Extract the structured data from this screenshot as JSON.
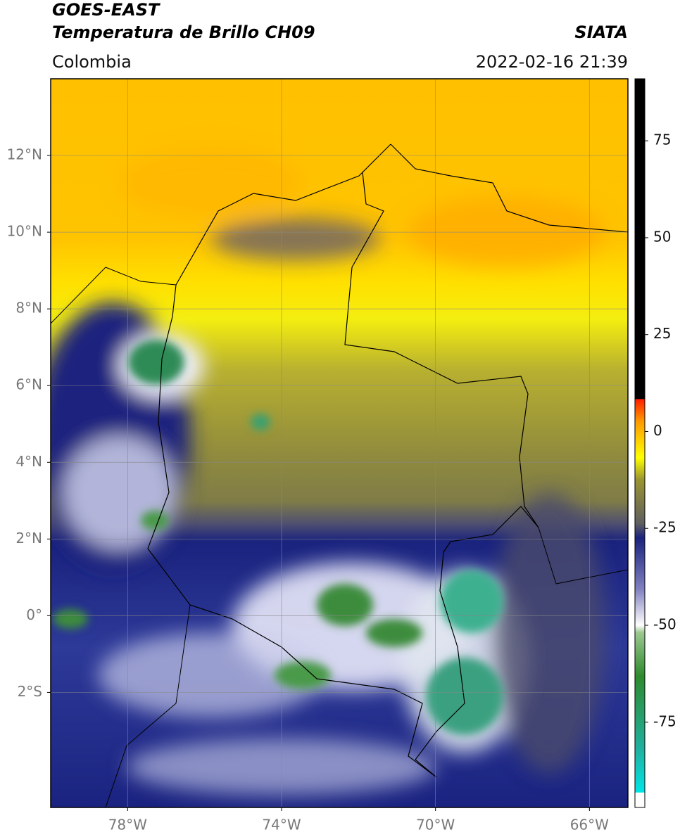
{
  "header": {
    "satellite": "GOES-EAST",
    "product": "Temperatura de Brillo CH09",
    "region": "Colombia",
    "source": "SIATA",
    "datetime": "2022-02-16 21:39"
  },
  "map": {
    "xlim": [
      -80,
      -65
    ],
    "ylim": [
      -5,
      14
    ],
    "xticks": [
      {
        "value": -78,
        "label": "78°W"
      },
      {
        "value": -74,
        "label": "74°W"
      },
      {
        "value": -70,
        "label": "70°W"
      },
      {
        "value": -66,
        "label": "66°W"
      }
    ],
    "yticks": [
      {
        "value": 12,
        "label": "12°N"
      },
      {
        "value": 10,
        "label": "10°N"
      },
      {
        "value": 8,
        "label": "8°N"
      },
      {
        "value": 6,
        "label": "6°N"
      },
      {
        "value": 4,
        "label": "4°N"
      },
      {
        "value": 2,
        "label": "2°N"
      },
      {
        "value": 0,
        "label": "0°"
      },
      {
        "value": -2,
        "label": "2°S"
      }
    ],
    "grid": true
  },
  "colorbar": {
    "lim": [
      -97,
      91
    ],
    "ticks": [
      75,
      50,
      25,
      0,
      -25,
      -50,
      -75
    ]
  }
}
